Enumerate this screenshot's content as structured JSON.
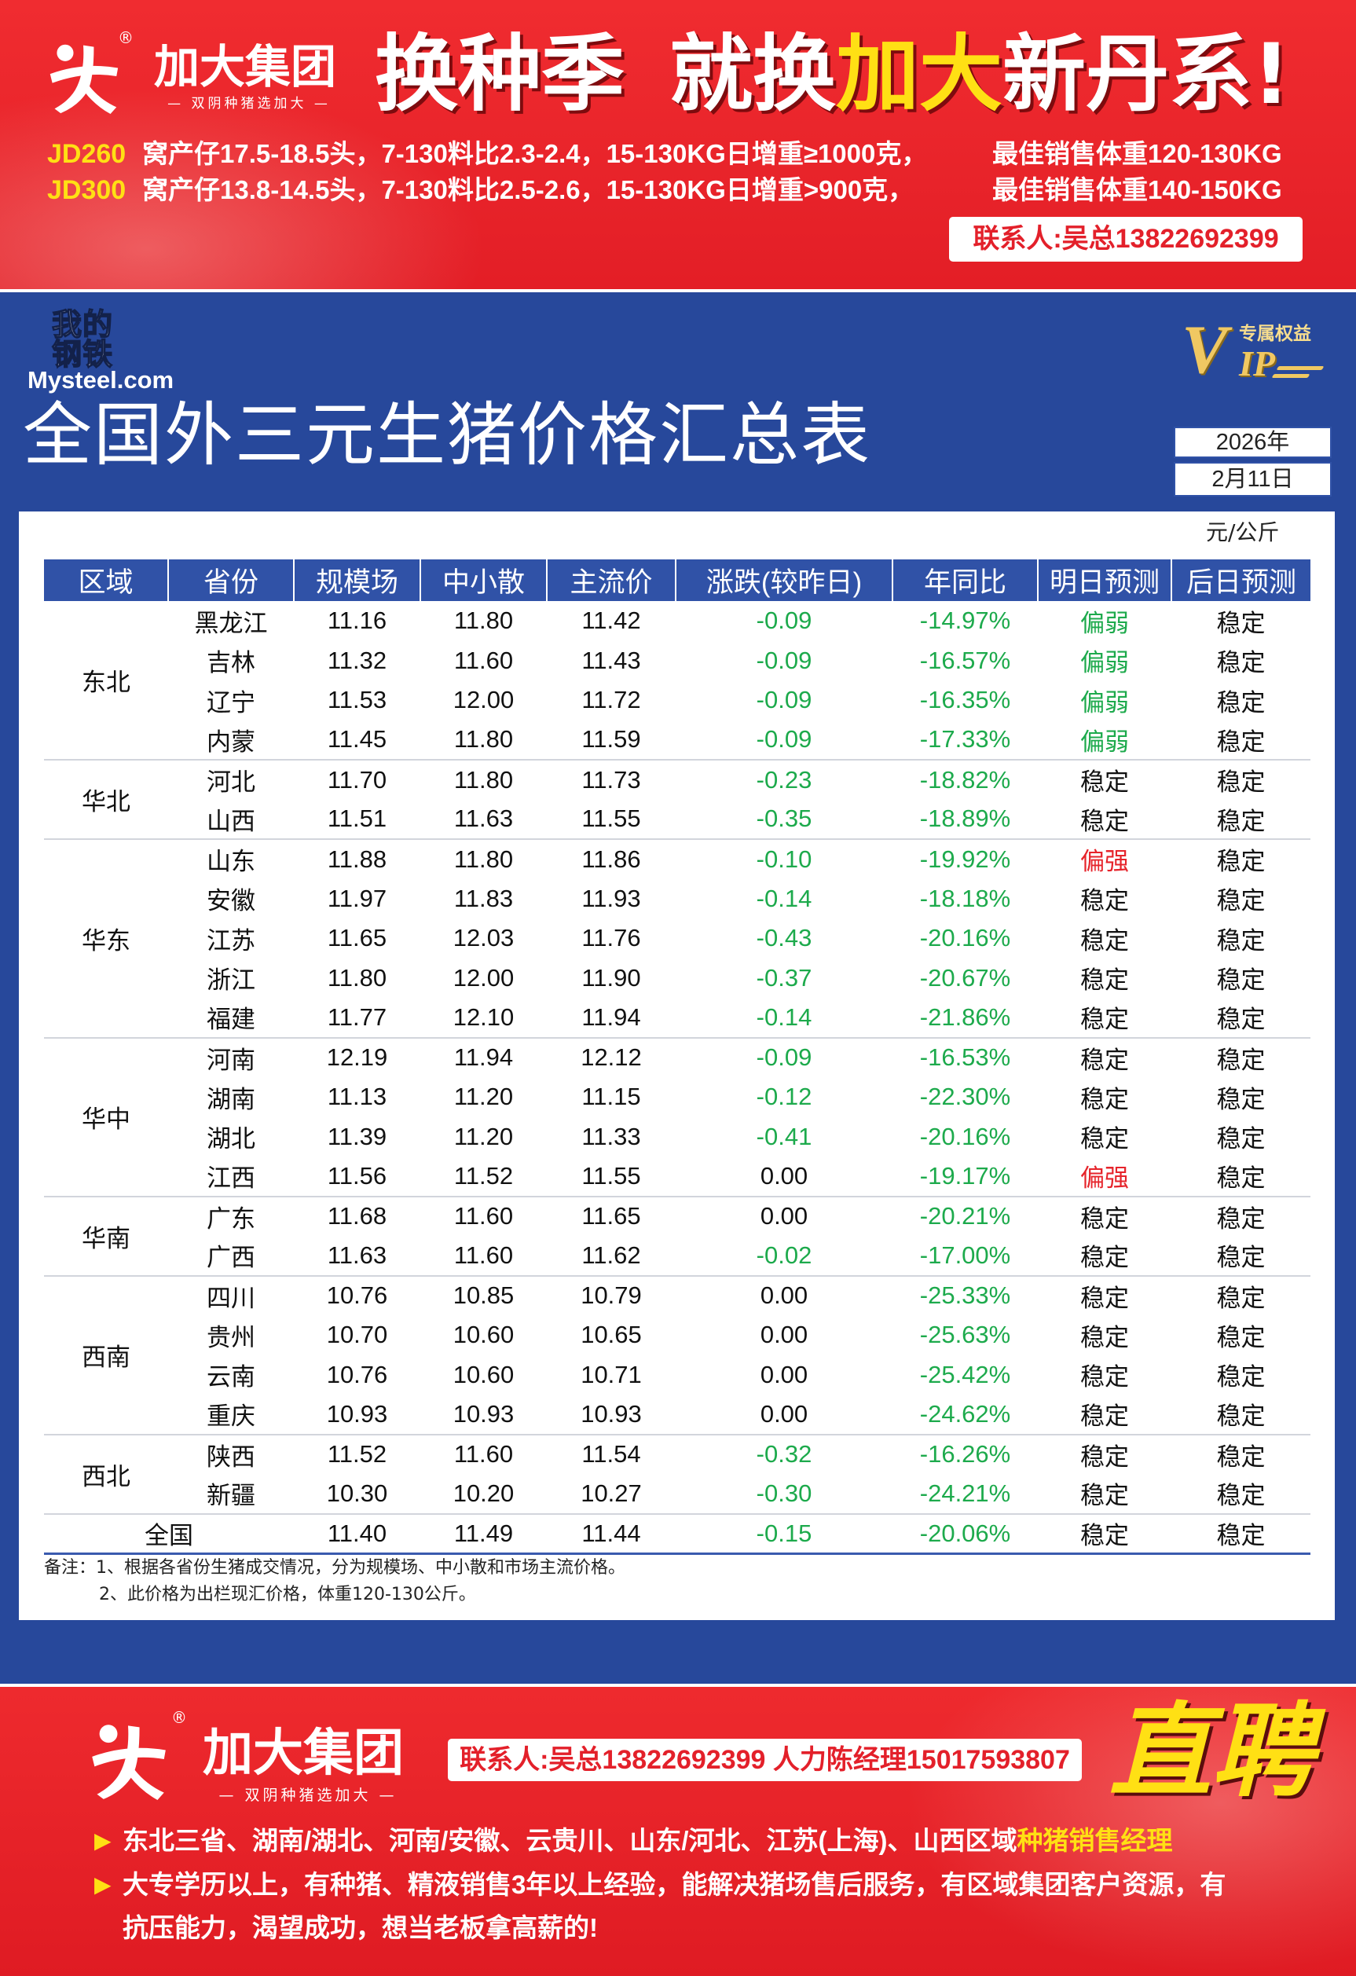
{
  "top_banner": {
    "brand": "加大集团",
    "registered": "®",
    "tagline": "— 双阴种猪选加大 —",
    "slogan": [
      "换种季",
      "就换",
      "加大",
      "新丹系!"
    ],
    "products": [
      {
        "code": "JD260",
        "specs": "窝产仔17.5-18.5头，7-130料比2.3-2.4，15-130KG日增重≥1000克，",
        "best_weight": "最佳销售体重120-130KG"
      },
      {
        "code": "JD300",
        "specs": "窝产仔13.8-14.5头，7-130料比2.5-2.6，15-130KG日增重>900克，",
        "best_weight": "最佳销售体重140-150KG"
      }
    ],
    "contact": "联系人:吴总13822692399"
  },
  "header": {
    "logo_chars": [
      "我的",
      "钢铁"
    ],
    "logo_domain": "Mysteel.com",
    "vip_badge": {
      "letter_v": "V",
      "letters_ip": "IP",
      "label": "专属权益"
    },
    "title": "全国外三元生猪价格汇总表",
    "date_year": "2026年",
    "date_day": "2月11日"
  },
  "table": {
    "unit": "元/公斤",
    "columns": [
      "区域",
      "省份",
      "规模场",
      "中小散",
      "主流价",
      "涨跌(较昨日)",
      "年同比",
      "明日预测",
      "后日预测"
    ],
    "regions": [
      {
        "name": "东北",
        "rows": [
          [
            "黑龙江",
            "11.16",
            "11.80",
            "11.42",
            "-0.09",
            "-14.97%",
            "偏弱",
            "稳定"
          ],
          [
            "吉林",
            "11.32",
            "11.60",
            "11.43",
            "-0.09",
            "-16.57%",
            "偏弱",
            "稳定"
          ],
          [
            "辽宁",
            "11.53",
            "12.00",
            "11.72",
            "-0.09",
            "-16.35%",
            "偏弱",
            "稳定"
          ],
          [
            "内蒙",
            "11.45",
            "11.80",
            "11.59",
            "-0.09",
            "-17.33%",
            "偏弱",
            "稳定"
          ]
        ]
      },
      {
        "name": "华北",
        "rows": [
          [
            "河北",
            "11.70",
            "11.80",
            "11.73",
            "-0.23",
            "-18.82%",
            "稳定",
            "稳定"
          ],
          [
            "山西",
            "11.51",
            "11.63",
            "11.55",
            "-0.35",
            "-18.89%",
            "稳定",
            "稳定"
          ]
        ]
      },
      {
        "name": "华东",
        "rows": [
          [
            "山东",
            "11.88",
            "11.80",
            "11.86",
            "-0.10",
            "-19.92%",
            "偏强",
            "稳定"
          ],
          [
            "安徽",
            "11.97",
            "11.83",
            "11.93",
            "-0.14",
            "-18.18%",
            "稳定",
            "稳定"
          ],
          [
            "江苏",
            "11.65",
            "12.03",
            "11.76",
            "-0.43",
            "-20.16%",
            "稳定",
            "稳定"
          ],
          [
            "浙江",
            "11.80",
            "12.00",
            "11.90",
            "-0.37",
            "-20.67%",
            "稳定",
            "稳定"
          ],
          [
            "福建",
            "11.77",
            "12.10",
            "11.94",
            "-0.14",
            "-21.86%",
            "稳定",
            "稳定"
          ]
        ]
      },
      {
        "name": "华中",
        "rows": [
          [
            "河南",
            "12.19",
            "11.94",
            "12.12",
            "-0.09",
            "-16.53%",
            "稳定",
            "稳定"
          ],
          [
            "湖南",
            "11.13",
            "11.20",
            "11.15",
            "-0.12",
            "-22.30%",
            "稳定",
            "稳定"
          ],
          [
            "湖北",
            "11.39",
            "11.20",
            "11.33",
            "-0.41",
            "-20.16%",
            "稳定",
            "稳定"
          ],
          [
            "江西",
            "11.56",
            "11.52",
            "11.55",
            "0.00",
            "-19.17%",
            "偏强",
            "稳定"
          ]
        ]
      },
      {
        "name": "华南",
        "rows": [
          [
            "广东",
            "11.68",
            "11.60",
            "11.65",
            "0.00",
            "-20.21%",
            "稳定",
            "稳定"
          ],
          [
            "广西",
            "11.63",
            "11.60",
            "11.62",
            "-0.02",
            "-17.00%",
            "稳定",
            "稳定"
          ]
        ]
      },
      {
        "name": "西南",
        "rows": [
          [
            "四川",
            "10.76",
            "10.85",
            "10.79",
            "0.00",
            "-25.33%",
            "稳定",
            "稳定"
          ],
          [
            "贵州",
            "10.70",
            "10.60",
            "10.65",
            "0.00",
            "-25.63%",
            "稳定",
            "稳定"
          ],
          [
            "云南",
            "10.76",
            "10.60",
            "10.71",
            "0.00",
            "-25.42%",
            "稳定",
            "稳定"
          ],
          [
            "重庆",
            "10.93",
            "10.93",
            "10.93",
            "0.00",
            "-24.62%",
            "稳定",
            "稳定"
          ]
        ]
      },
      {
        "name": "西北",
        "rows": [
          [
            "陕西",
            "11.52",
            "11.60",
            "11.54",
            "-0.32",
            "-16.26%",
            "稳定",
            "稳定"
          ],
          [
            "新疆",
            "10.30",
            "10.20",
            "10.27",
            "-0.30",
            "-24.21%",
            "稳定",
            "稳定"
          ]
        ]
      }
    ],
    "national": {
      "label": "全国",
      "values": [
        "11.40",
        "11.49",
        "11.44",
        "-0.15",
        "-20.06%",
        "稳定",
        "稳定"
      ]
    },
    "notes": [
      "备注：1、根据各省份生猪成交情况，分为规模场、中小散和市场主流价格。",
      "2、此价格为出栏现汇价格，体重120-130公斤。"
    ]
  },
  "bottom_banner": {
    "brand": "加大集团",
    "registered": "®",
    "tagline": "— 双阴种猪选加大 —",
    "contact": "联系人:吴总13822692399 人力陈经理15017593807",
    "recruit_title": "直聘",
    "bullet_glyph": "▶",
    "bullets": [
      {
        "text": "东北三省、湖南/湖北、河南/安徽、云贵川、山东/河北、江苏(上海)、山西区域",
        "highlight": "种猪销售经理"
      },
      {
        "text": "大专学历以上，有种猪、精液销售3年以上经验，能解决猪场售后服务，有区域集团客户资源，有",
        "continuation": "抗压能力，渴望成功，想当老板拿高薪的!"
      }
    ]
  },
  "colors": {
    "banner_red": "#e6222a",
    "main_blue": "#27489b",
    "header_blue": "#3052a7",
    "text": "#111111",
    "down_green": "#1daa4c",
    "up_red": "#e6242b",
    "highlight_yellow": "#ffe014",
    "vip_gold": "#f0c862"
  },
  "forecast_colors": {
    "偏弱": "#1daa4c",
    "偏强": "#e6242b"
  },
  "icons": {
    "brand_logo": "jiada-logo-icon",
    "bullet": "play-triangle-icon"
  }
}
